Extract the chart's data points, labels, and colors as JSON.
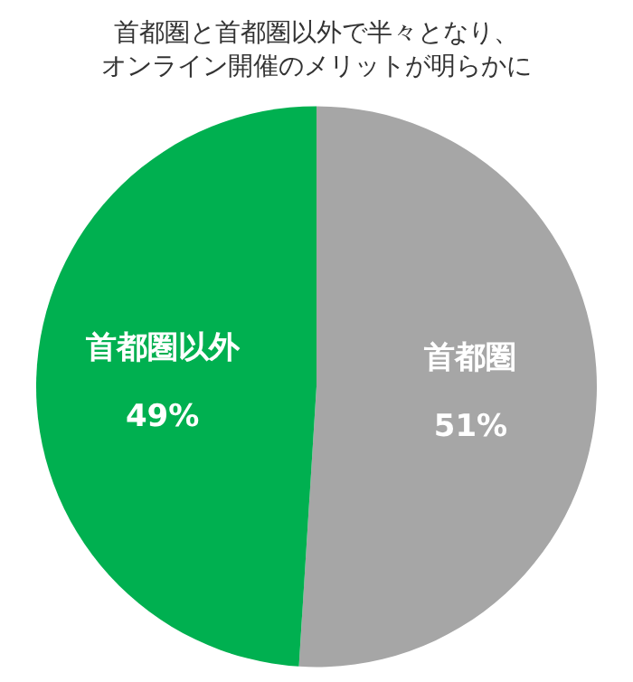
{
  "chart_data": {
    "type": "pie",
    "title": "首都圏と首都圏以外で半々となり、オンライン開催のメリットが明らかに",
    "categories": [
      "首都圏",
      "首都圏以外"
    ],
    "values": [
      51,
      49
    ],
    "colors": [
      "#a6a6a6",
      "#00b050"
    ],
    "value_labels": [
      "51%",
      "49%"
    ],
    "legend": false
  }
}
